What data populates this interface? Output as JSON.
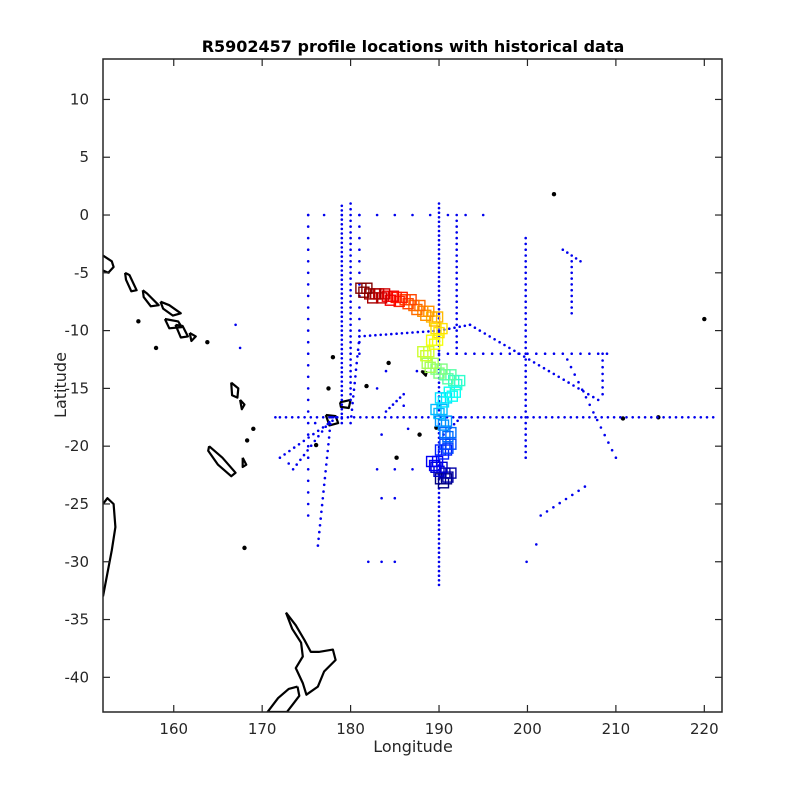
{
  "chart_data": {
    "type": "scatter",
    "title": "R5902457 profile locations with historical data",
    "xlabel": "Longitude",
    "ylabel": "Latitude",
    "xlim": [
      152,
      222
    ],
    "ylim": [
      -43,
      13.5
    ],
    "xticks": [
      160,
      170,
      180,
      190,
      200,
      210,
      220
    ],
    "yticks": [
      10,
      5,
      0,
      -5,
      -10,
      -15,
      -20,
      -25,
      -30,
      -35,
      -40
    ],
    "grid": false,
    "colors": {
      "historical": "#0000ee",
      "coastline": "#000000",
      "axes": "#262626"
    },
    "historical_points": [
      [
        175.2,
        0.0
      ],
      [
        177.0,
        0.0
      ],
      [
        179.0,
        0.0
      ],
      [
        181.0,
        0.0
      ],
      [
        183.0,
        0.0
      ],
      [
        185.0,
        0.0
      ],
      [
        187.0,
        0.0
      ],
      [
        189.0,
        0.0
      ],
      [
        191.0,
        0.0
      ],
      [
        193.0,
        0.0
      ],
      [
        195.0,
        0.0
      ],
      [
        182.0,
        -30.0
      ],
      [
        183.5,
        -30.0
      ],
      [
        185.0,
        -30.0
      ],
      [
        199.9,
        -30.0
      ],
      [
        201.0,
        -28.5
      ],
      [
        183.5,
        -24.5
      ],
      [
        185.0,
        -24.5
      ],
      [
        183.0,
        -22.0
      ],
      [
        185.0,
        -22.0
      ],
      [
        187.0,
        -22.0
      ],
      [
        173.0,
        -21.5
      ],
      [
        176.0,
        -18.0
      ],
      [
        184.0,
        -13.5
      ],
      [
        183.0,
        -15.0
      ],
      [
        171.5,
        -17.5
      ],
      [
        167.0,
        -9.5
      ],
      [
        167.5,
        -11.5
      ],
      [
        183.5,
        -19.0
      ],
      [
        186.5,
        -18.5
      ],
      [
        186.0,
        -16.5
      ],
      [
        187.5,
        -13.5
      ]
    ],
    "historical_lines": [
      {
        "from": [
          175.2,
          0.0
        ],
        "to": [
          175.2,
          -26.0
        ],
        "step": 1.0
      },
      {
        "from": [
          179.0,
          0.8
        ],
        "to": [
          179.0,
          -18.0
        ],
        "step": 0.4
      },
      {
        "from": [
          180.0,
          1.0
        ],
        "to": [
          180.0,
          -16.0
        ],
        "step": 0.5
      },
      {
        "from": [
          181.0,
          0.0
        ],
        "to": [
          181.0,
          -12.0
        ],
        "step": 1.0
      },
      {
        "from": [
          190.0,
          1.0
        ],
        "to": [
          190.0,
          -32.0
        ],
        "step": 0.4
      },
      {
        "from": [
          192.0,
          0.0
        ],
        "to": [
          192.0,
          -12.0
        ],
        "step": 0.5
      },
      {
        "from": [
          199.8,
          -2.0
        ],
        "to": [
          199.8,
          -21.0
        ],
        "step": 0.5
      },
      {
        "from": [
          176.3,
          -28.6
        ],
        "to": [
          177.8,
          -17.5
        ],
        "step": 0.6
      },
      {
        "from": [
          180.0,
          -18.0
        ],
        "to": [
          181.0,
          -10.5
        ],
        "step": 0.6
      },
      {
        "from": [
          181.0,
          -10.5
        ],
        "to": [
          190.0,
          -10.0
        ],
        "step": 0.6
      },
      {
        "from": [
          190.0,
          -10.0
        ],
        "to": [
          193.5,
          -9.5
        ],
        "step": 0.6
      },
      {
        "from": [
          193.5,
          -9.5
        ],
        "to": [
          208.0,
          -16.0
        ],
        "step": 0.6
      },
      {
        "from": [
          190.0,
          -12.0
        ],
        "to": [
          209.0,
          -12.0
        ],
        "step": 1.0
      },
      {
        "from": [
          208.5,
          -12.0
        ],
        "to": [
          208.5,
          -15.5
        ],
        "step": 0.6
      },
      {
        "from": [
          172.0,
          -17.5
        ],
        "to": [
          221.0,
          -17.5
        ],
        "step": 0.7
      },
      {
        "from": [
          192.5,
          -17.5
        ],
        "to": [
          190.5,
          -19.0
        ],
        "step": 0.5
      },
      {
        "from": [
          204.5,
          -12.5
        ],
        "to": [
          210.0,
          -21.0
        ],
        "step": 0.8
      },
      {
        "from": [
          172.0,
          -21.0
        ],
        "to": [
          178.5,
          -17.5
        ],
        "step": 0.6
      },
      {
        "from": [
          173.5,
          -22.0
        ],
        "to": [
          178.0,
          -17.5
        ],
        "step": 0.6
      },
      {
        "from": [
          201.5,
          -26.0
        ],
        "to": [
          206.5,
          -23.5
        ],
        "step": 0.8
      },
      {
        "from": [
          204.0,
          -3.0
        ],
        "to": [
          206.0,
          -4.0
        ],
        "step": 0.5
      },
      {
        "from": [
          205.0,
          -4.0
        ],
        "to": [
          205.0,
          -8.5
        ],
        "step": 0.5
      },
      {
        "from": [
          184.0,
          -17.0
        ],
        "to": [
          186.0,
          -15.5
        ],
        "step": 0.5
      }
    ],
    "profile_track": [
      [
        181.5,
        -6.5
      ],
      [
        182.5,
        -7.0
      ],
      [
        183.5,
        -7.0
      ],
      [
        184.5,
        -7.2
      ],
      [
        185.5,
        -7.3
      ],
      [
        186.5,
        -7.5
      ],
      [
        187.5,
        -8.0
      ],
      [
        188.5,
        -8.5
      ],
      [
        189.5,
        -9.0
      ],
      [
        190.0,
        -10.0
      ],
      [
        189.5,
        -11.0
      ],
      [
        188.5,
        -12.0
      ],
      [
        189.0,
        -13.0
      ],
      [
        190.0,
        -13.5
      ],
      [
        191.0,
        -14.0
      ],
      [
        192.0,
        -14.5
      ],
      [
        191.5,
        -15.5
      ],
      [
        190.5,
        -16.0
      ],
      [
        190.0,
        -17.0
      ],
      [
        190.5,
        -18.0
      ],
      [
        191.0,
        -19.0
      ],
      [
        191.0,
        -20.0
      ],
      [
        190.5,
        -20.5
      ],
      [
        189.5,
        -21.5
      ],
      [
        190.0,
        -22.0
      ],
      [
        191.0,
        -22.5
      ],
      [
        190.5,
        -23.0
      ]
    ],
    "coastlines": [
      [
        [
          152.0,
          -3.5
        ],
        [
          153.0,
          -4.0
        ],
        [
          153.2,
          -4.5
        ],
        [
          152.6,
          -5.0
        ],
        [
          152.0,
          -4.8
        ]
      ],
      [
        [
          154.5,
          -5.0
        ],
        [
          155.0,
          -5.2
        ],
        [
          155.8,
          -6.5
        ],
        [
          155.2,
          -6.6
        ],
        [
          154.6,
          -5.6
        ],
        [
          154.5,
          -5.0
        ]
      ],
      [
        [
          156.5,
          -6.5
        ],
        [
          157.0,
          -6.8
        ],
        [
          158.3,
          -7.8
        ],
        [
          157.4,
          -7.9
        ],
        [
          156.6,
          -7.1
        ],
        [
          156.5,
          -6.5
        ]
      ],
      [
        [
          158.5,
          -7.5
        ],
        [
          159.5,
          -7.8
        ],
        [
          160.8,
          -8.5
        ],
        [
          159.9,
          -8.7
        ],
        [
          158.8,
          -8.1
        ],
        [
          158.5,
          -7.5
        ]
      ],
      [
        [
          159.0,
          -9.0
        ],
        [
          160.5,
          -9.2
        ],
        [
          160.9,
          -9.7
        ],
        [
          159.5,
          -9.8
        ],
        [
          159.0,
          -9.0
        ]
      ],
      [
        [
          160.2,
          -9.5
        ],
        [
          161.0,
          -9.6
        ],
        [
          161.6,
          -10.5
        ],
        [
          160.8,
          -10.6
        ],
        [
          160.2,
          -9.5
        ]
      ],
      [
        [
          161.8,
          -10.2
        ],
        [
          162.5,
          -10.5
        ],
        [
          162.0,
          -10.9
        ],
        [
          161.8,
          -10.2
        ]
      ],
      [
        [
          166.5,
          -14.5
        ],
        [
          167.3,
          -15.0
        ],
        [
          167.2,
          -15.8
        ],
        [
          166.6,
          -15.6
        ],
        [
          166.5,
          -14.5
        ]
      ],
      [
        [
          167.5,
          -16.0
        ],
        [
          168.0,
          -16.4
        ],
        [
          167.7,
          -16.8
        ],
        [
          167.5,
          -16.0
        ]
      ],
      [
        [
          164.0,
          -20.0
        ],
        [
          165.5,
          -21.0
        ],
        [
          167.0,
          -22.3
        ],
        [
          166.5,
          -22.6
        ],
        [
          165.0,
          -21.6
        ],
        [
          163.9,
          -20.4
        ],
        [
          164.0,
          -20.0
        ]
      ],
      [
        [
          167.8,
          -21.0
        ],
        [
          168.2,
          -21.6
        ],
        [
          167.8,
          -21.8
        ],
        [
          167.8,
          -21.0
        ]
      ],
      [
        [
          177.2,
          -17.3
        ],
        [
          178.3,
          -17.4
        ],
        [
          178.6,
          -18.0
        ],
        [
          177.6,
          -18.2
        ],
        [
          177.2,
          -17.3
        ]
      ],
      [
        [
          178.8,
          -16.2
        ],
        [
          180.0,
          -16.0
        ],
        [
          179.8,
          -16.7
        ],
        [
          178.9,
          -16.6
        ],
        [
          178.8,
          -16.2
        ]
      ],
      [
        [
          188.0,
          -13.5
        ],
        [
          188.6,
          -13.6
        ],
        [
          188.5,
          -13.9
        ],
        [
          188.0,
          -13.5
        ]
      ],
      [
        [
          152.0,
          -33.0
        ],
        [
          152.5,
          -31.0
        ],
        [
          153.0,
          -29.0
        ],
        [
          153.4,
          -27.0
        ],
        [
          153.2,
          -25.0
        ],
        [
          152.5,
          -24.5
        ],
        [
          152.0,
          -25.0
        ]
      ],
      [
        [
          172.7,
          -34.4
        ],
        [
          173.8,
          -35.5
        ],
        [
          174.8,
          -36.8
        ],
        [
          175.5,
          -37.8
        ],
        [
          176.4,
          -37.8
        ],
        [
          178.0,
          -37.6
        ],
        [
          178.3,
          -38.5
        ],
        [
          177.0,
          -39.5
        ],
        [
          176.3,
          -40.8
        ],
        [
          175.0,
          -41.5
        ],
        [
          174.6,
          -40.5
        ],
        [
          173.8,
          -39.2
        ],
        [
          174.6,
          -38.2
        ],
        [
          174.4,
          -37.0
        ],
        [
          173.4,
          -35.8
        ],
        [
          172.7,
          -34.4
        ]
      ],
      [
        [
          174.0,
          -40.8
        ],
        [
          173.0,
          -41.0
        ],
        [
          171.8,
          -41.8
        ],
        [
          170.6,
          -43.0
        ],
        [
          172.8,
          -43.0
        ],
        [
          173.6,
          -42.2
        ],
        [
          174.2,
          -41.6
        ],
        [
          174.0,
          -40.8
        ]
      ]
    ],
    "islets": [
      [
        203.0,
        1.8
      ],
      [
        220.0,
        -9.0
      ],
      [
        210.8,
        -17.6
      ],
      [
        214.8,
        -17.5
      ],
      [
        168.0,
        -28.8
      ],
      [
        163.8,
        -11.0
      ],
      [
        158.0,
        -11.5
      ],
      [
        156.0,
        -9.2
      ],
      [
        178.0,
        -12.3
      ],
      [
        184.3,
        -12.8
      ],
      [
        185.2,
        -21.0
      ],
      [
        189.7,
        -18.4
      ],
      [
        187.8,
        -19.0
      ],
      [
        181.8,
        -14.8
      ],
      [
        176.1,
        -19.9
      ],
      [
        177.5,
        -15.0
      ],
      [
        169.0,
        -18.5
      ],
      [
        168.3,
        -19.5
      ]
    ]
  }
}
